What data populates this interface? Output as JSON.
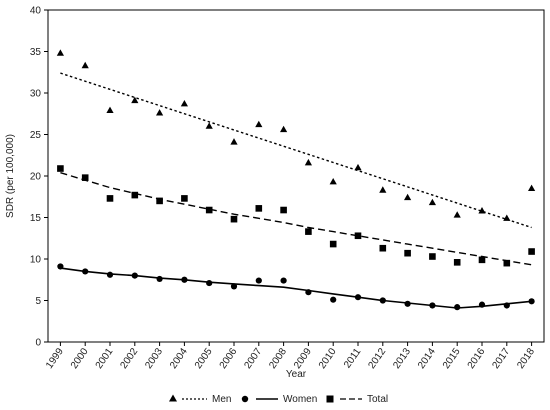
{
  "chart_data": {
    "type": "scatter",
    "title": "",
    "xlabel": "Year",
    "ylabel": "SDR (per 100,000)",
    "x": [
      "1999",
      "2000",
      "2001",
      "2002",
      "2003",
      "2004",
      "2005",
      "2006",
      "2007",
      "2008",
      "2009",
      "2010",
      "2011",
      "2012",
      "2013",
      "2014",
      "2015",
      "2016",
      "2017",
      "2018"
    ],
    "ylim": [
      0,
      40
    ],
    "yticks": [
      0,
      5,
      10,
      15,
      20,
      25,
      30,
      35,
      40
    ],
    "grid": false,
    "legend_position": "bottom",
    "series": [
      {
        "name": "Men",
        "marker": "triangle",
        "line_style": "dotted",
        "color": "#000000",
        "values": [
          34.8,
          33.3,
          27.9,
          29.1,
          27.6,
          28.7,
          26.0,
          24.1,
          26.2,
          25.6,
          21.6,
          19.3,
          21.0,
          18.3,
          17.4,
          16.8,
          15.3,
          15.8,
          14.9,
          18.5
        ],
        "trend": [
          32.4,
          13.8
        ]
      },
      {
        "name": "Women",
        "marker": "circle",
        "line_style": "solid",
        "color": "#000000",
        "values": [
          9.1,
          8.5,
          8.1,
          8.0,
          7.6,
          7.5,
          7.1,
          6.7,
          7.4,
          7.4,
          6.0,
          5.1,
          5.4,
          5.0,
          4.6,
          4.4,
          4.2,
          4.5,
          4.4,
          4.9
        ],
        "trend": [
          8.9,
          8.5,
          8.2,
          8.0,
          7.7,
          7.5,
          7.2,
          7.0,
          6.8,
          6.6,
          6.2,
          5.8,
          5.4,
          5.0,
          4.7,
          4.4,
          4.1,
          4.3,
          4.6,
          4.9
        ]
      },
      {
        "name": "Total",
        "marker": "square",
        "line_style": "dashed",
        "color": "#000000",
        "values": [
          20.9,
          19.8,
          17.3,
          17.7,
          17.0,
          17.3,
          15.9,
          14.8,
          16.1,
          15.9,
          13.3,
          11.8,
          12.8,
          11.3,
          10.7,
          10.3,
          9.6,
          9.9,
          9.5,
          10.9
        ],
        "trend": [
          20.4,
          19.5,
          18.6,
          17.9,
          17.2,
          16.6,
          16.0,
          15.4,
          14.9,
          14.4,
          13.8,
          13.3,
          12.8,
          12.3,
          11.8,
          11.3,
          10.8,
          10.3,
          9.8,
          9.3
        ]
      }
    ]
  }
}
